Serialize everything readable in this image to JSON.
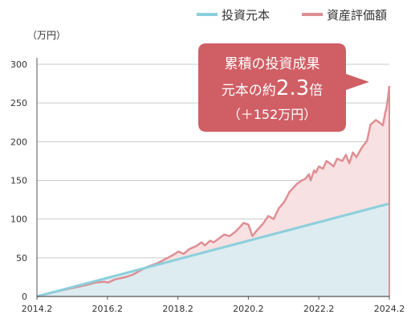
{
  "colors": {
    "principal_line": "#8ccfdc",
    "principal_fill": "#dcecf1",
    "asset_line": "#de8f94",
    "asset_fill": "#f8e1e2",
    "callout": "#cf5f65",
    "grid": "#c9c9c9",
    "axis": "#555555"
  },
  "callout": {
    "line1": "累積の投資成果",
    "line2_prefix": "元本の約",
    "line2_value": "2.3",
    "line2_suffix": "倍",
    "line3": "（＋152万円）"
  },
  "chart_data": {
    "type": "area",
    "unit_label": "（万円）",
    "xlabel": "",
    "ylabel": "",
    "ylim": [
      0,
      300
    ],
    "xlim": [
      2014.0833,
      2024.0833
    ],
    "y_ticks": [
      0,
      50,
      100,
      150,
      200,
      250,
      300
    ],
    "x_ticks": [
      {
        "label": "2014.2",
        "value": 2014.0833
      },
      {
        "label": "2016.2",
        "value": 2016.0833
      },
      {
        "label": "2018.2",
        "value": 2018.0833
      },
      {
        "label": "2020.2",
        "value": 2020.0833
      },
      {
        "label": "2022.2",
        "value": 2022.0833
      },
      {
        "label": "2024.2",
        "value": 2024.0833
      }
    ],
    "grid": true,
    "legend_position": "top-right",
    "series": [
      {
        "name": "投資元本",
        "points": [
          [
            2014.0833,
            0
          ],
          [
            2024.0833,
            120
          ]
        ]
      },
      {
        "name": "資産評価額",
        "points": [
          [
            2014.0833,
            0
          ],
          [
            2014.5,
            5
          ],
          [
            2015.0,
            10
          ],
          [
            2015.5,
            15
          ],
          [
            2015.75,
            18
          ],
          [
            2016.0,
            19
          ],
          [
            2016.1,
            18
          ],
          [
            2016.3,
            22
          ],
          [
            2016.6,
            25
          ],
          [
            2016.8,
            28
          ],
          [
            2017.0,
            33
          ],
          [
            2017.2,
            38
          ],
          [
            2017.5,
            43
          ],
          [
            2017.8,
            50
          ],
          [
            2018.0,
            55
          ],
          [
            2018.1,
            58
          ],
          [
            2018.25,
            55
          ],
          [
            2018.4,
            61
          ],
          [
            2018.6,
            65
          ],
          [
            2018.75,
            70
          ],
          [
            2018.85,
            66
          ],
          [
            2019.0,
            72
          ],
          [
            2019.1,
            70
          ],
          [
            2019.25,
            75
          ],
          [
            2019.4,
            80
          ],
          [
            2019.55,
            78
          ],
          [
            2019.7,
            83
          ],
          [
            2019.85,
            90
          ],
          [
            2019.95,
            95
          ],
          [
            2020.0833,
            93
          ],
          [
            2020.2,
            78
          ],
          [
            2020.3,
            84
          ],
          [
            2020.5,
            94
          ],
          [
            2020.65,
            104
          ],
          [
            2020.8,
            100
          ],
          [
            2020.95,
            114
          ],
          [
            2021.1,
            122
          ],
          [
            2021.25,
            135
          ],
          [
            2021.45,
            145
          ],
          [
            2021.6,
            150
          ],
          [
            2021.7,
            152
          ],
          [
            2021.8,
            158
          ],
          [
            2021.85,
            150
          ],
          [
            2021.95,
            163
          ],
          [
            2022.0,
            160
          ],
          [
            2022.0833,
            168
          ],
          [
            2022.2,
            165
          ],
          [
            2022.3,
            175
          ],
          [
            2022.4,
            172
          ],
          [
            2022.5,
            168
          ],
          [
            2022.6,
            178
          ],
          [
            2022.75,
            175
          ],
          [
            2022.85,
            183
          ],
          [
            2022.95,
            172
          ],
          [
            2023.05,
            186
          ],
          [
            2023.15,
            180
          ],
          [
            2023.3,
            192
          ],
          [
            2023.45,
            201
          ],
          [
            2023.55,
            222
          ],
          [
            2023.7,
            228
          ],
          [
            2023.8,
            225
          ],
          [
            2023.9,
            221
          ],
          [
            2023.97,
            238
          ],
          [
            2024.0,
            242
          ],
          [
            2024.05,
            258
          ],
          [
            2024.0833,
            272
          ]
        ]
      }
    ]
  }
}
